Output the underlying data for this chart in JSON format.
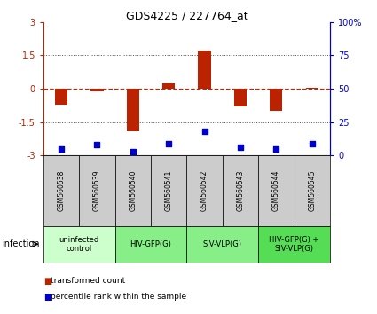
{
  "title": "GDS4225 / 227764_at",
  "samples": [
    "GSM560538",
    "GSM560539",
    "GSM560540",
    "GSM560541",
    "GSM560542",
    "GSM560543",
    "GSM560544",
    "GSM560545"
  ],
  "red_values": [
    -0.7,
    -0.1,
    -1.9,
    0.25,
    1.7,
    -0.8,
    -1.0,
    0.05
  ],
  "blue_values": [
    5,
    8,
    3,
    9,
    18,
    6,
    5,
    9
  ],
  "ylim_left": [
    -3,
    3
  ],
  "ylim_right": [
    0,
    100
  ],
  "yticks_left": [
    -3,
    -1.5,
    0,
    1.5,
    3
  ],
  "yticks_right": [
    0,
    25,
    50,
    75,
    100
  ],
  "ytick_labels_left": [
    "-3",
    "-1.5",
    "0",
    "1.5",
    "3"
  ],
  "ytick_labels_right": [
    "0",
    "25",
    "50",
    "75",
    "100%"
  ],
  "red_color": "#bb2200",
  "blue_color": "#0000cc",
  "dashed_color": "#cc2200",
  "dotted_color": "#555555",
  "groups": [
    {
      "label": "uninfected\ncontrol",
      "start": 0,
      "end": 2,
      "color": "#ccffcc"
    },
    {
      "label": "HIV-GFP(G)",
      "start": 2,
      "end": 4,
      "color": "#88ee88"
    },
    {
      "label": "SIV-VLP(G)",
      "start": 4,
      "end": 6,
      "color": "#88ee88"
    },
    {
      "label": "HIV-GFP(G) +\nSIV-VLP(G)",
      "start": 6,
      "end": 8,
      "color": "#55dd55"
    }
  ],
  "sample_bg_color": "#cccccc",
  "infection_label": "infection",
  "legend_red": "transformed count",
  "legend_blue": "percentile rank within the sample",
  "bar_width": 0.35
}
